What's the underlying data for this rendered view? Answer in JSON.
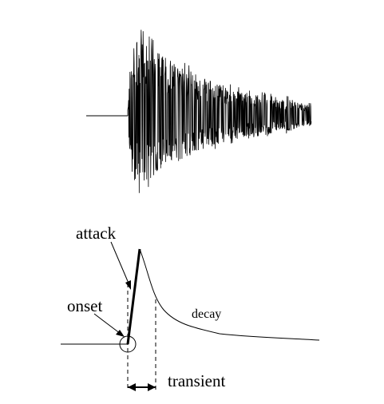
{
  "labels": {
    "attack": "attack",
    "onset": "onset",
    "decay": "decay",
    "transient": "transient"
  },
  "waveform": {
    "color": "#000000",
    "seed": 7
  }
}
